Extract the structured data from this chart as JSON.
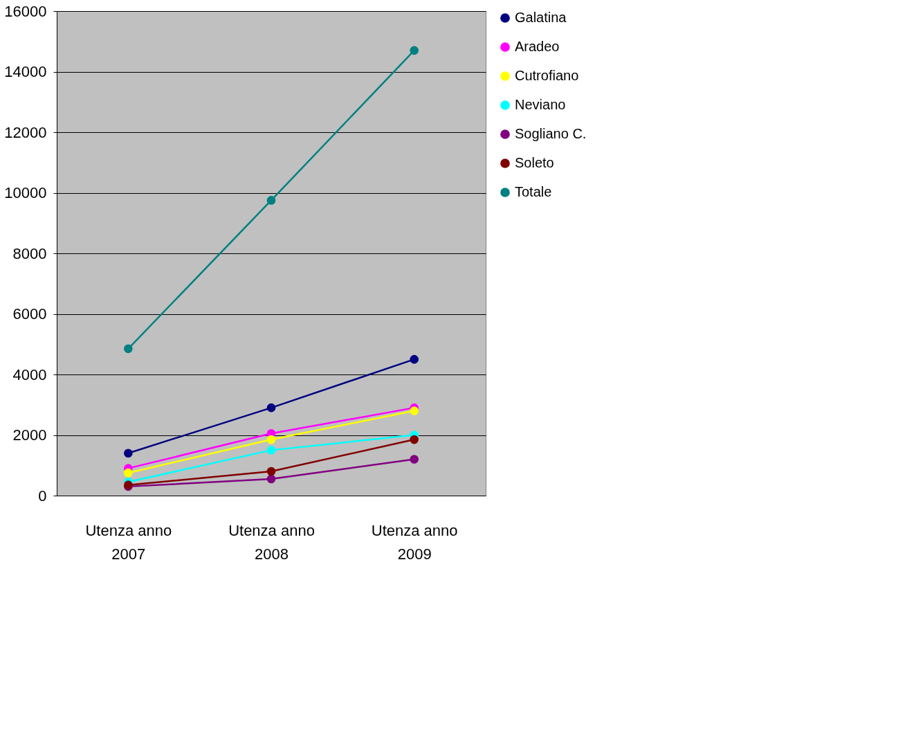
{
  "chart_data": {
    "type": "line",
    "categories": [
      "Utenza anno 2007",
      "Utenza anno 2008",
      "Utenza anno 2009"
    ],
    "series": [
      {
        "name": "Galatina",
        "color": "#000080",
        "values": [
          1400,
          2900,
          4500
        ]
      },
      {
        "name": "Aradeo",
        "color": "#ff00ff",
        "values": [
          900,
          2050,
          2900
        ]
      },
      {
        "name": "Cutrofiano",
        "color": "#ffff00",
        "values": [
          750,
          1850,
          2800
        ]
      },
      {
        "name": "Neviano",
        "color": "#00ffff",
        "values": [
          450,
          1500,
          2000
        ]
      },
      {
        "name": "Sogliano C.",
        "color": "#800080",
        "values": [
          300,
          550,
          1200
        ]
      },
      {
        "name": "Soleto",
        "color": "#800000",
        "values": [
          350,
          800,
          1850
        ]
      },
      {
        "name": "Totale",
        "color": "#008080",
        "values": [
          4850,
          9750,
          14700
        ]
      }
    ],
    "ylim": [
      0,
      16000
    ],
    "yticks": [
      0,
      2000,
      4000,
      6000,
      8000,
      10000,
      12000,
      14000,
      16000
    ],
    "grid": "y",
    "legend": "right",
    "marker": "circle",
    "line_style": "solid"
  }
}
